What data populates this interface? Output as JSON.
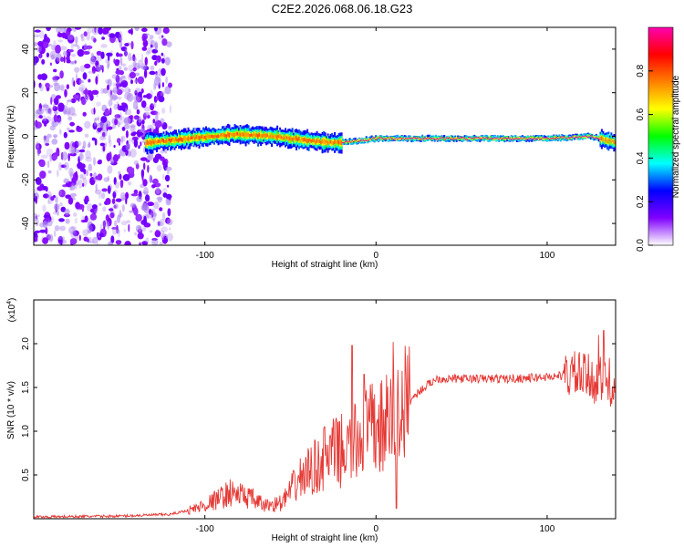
{
  "title": "C2E2.2026.068.06.18.G23",
  "chart_data": [
    {
      "type": "heatmap",
      "name": "spectrogram",
      "xlabel": "Height of straight line (km)",
      "ylabel": "Frequency (Hz)",
      "xlim": [
        -200,
        140
      ],
      "ylim": [
        -50,
        50
      ],
      "xticks": [
        -100,
        0,
        100
      ],
      "xtick_labels": [
        "-100",
        "0",
        "100"
      ],
      "yticks": [
        -40,
        -20,
        0,
        20,
        40
      ],
      "ytick_labels": [
        "-40",
        "-20",
        "0",
        "20",
        "40"
      ],
      "colorbar": {
        "label": "Normalized spectral amplitude",
        "range": [
          0,
          1
        ],
        "ticks": [
          0.0,
          0.2,
          0.4,
          0.6,
          0.8
        ],
        "tick_labels": [
          "0.0",
          "0.2",
          "0.4",
          "0.6",
          "0.8"
        ],
        "colors": [
          "#ffffff",
          "#8000ff",
          "#0000ff",
          "#00ffff",
          "#00ff00",
          "#ffff00",
          "#ff8000",
          "#ff0000",
          "#ff00b0"
        ]
      },
      "features": {
        "noise_region_x": [
          -200,
          -120
        ],
        "signal_track": [
          [
            -135,
            -3
          ],
          [
            -110,
            -1
          ],
          [
            -80,
            1
          ],
          [
            -60,
            0
          ],
          [
            -40,
            -2
          ],
          [
            -25,
            -3
          ],
          [
            -10,
            -2
          ],
          [
            0,
            -1
          ],
          [
            20,
            -1
          ],
          [
            60,
            -1
          ],
          [
            100,
            -1
          ],
          [
            125,
            0
          ],
          [
            140,
            -3
          ]
        ],
        "strong_band_x": [
          -20,
          130
        ]
      }
    },
    {
      "type": "line",
      "name": "snr",
      "xlabel": "Height of straight line (km)",
      "ylabel": "SNR (10 * v/v)",
      "multiplier": "(x10",
      "multiplier_exp": "4",
      "xlim": [
        -200,
        140
      ],
      "ylim": [
        0,
        2.5
      ],
      "xticks": [
        -100,
        0,
        100
      ],
      "xtick_labels": [
        "-100",
        "0",
        "100"
      ],
      "yticks": [
        0.5,
        1.0,
        1.5,
        2.0
      ],
      "ytick_labels": [
        "0.5",
        "1.0",
        "1.5",
        "2.0"
      ],
      "color": "#e53935",
      "series_envelope": [
        [
          -200,
          0.02
        ],
        [
          -150,
          0.03
        ],
        [
          -120,
          0.05
        ],
        [
          -105,
          0.12
        ],
        [
          -95,
          0.2
        ],
        [
          -85,
          0.3
        ],
        [
          -75,
          0.25
        ],
        [
          -65,
          0.15
        ],
        [
          -55,
          0.18
        ],
        [
          -45,
          0.45
        ],
        [
          -35,
          0.6
        ],
        [
          -25,
          0.75
        ],
        [
          -15,
          0.8
        ],
        [
          -5,
          1.0
        ],
        [
          5,
          1.05
        ],
        [
          15,
          1.25
        ],
        [
          25,
          1.45
        ],
        [
          35,
          1.6
        ],
        [
          60,
          1.6
        ],
        [
          80,
          1.6
        ],
        [
          100,
          1.62
        ],
        [
          115,
          1.65
        ],
        [
          125,
          1.6
        ],
        [
          140,
          1.55
        ]
      ],
      "spikes": [
        [
          -30,
          1.05
        ],
        [
          -14,
          1.98
        ],
        [
          -7,
          1.65
        ],
        [
          10,
          2.02
        ],
        [
          12,
          0.12
        ],
        [
          130,
          2.1
        ],
        [
          133,
          2.15
        ]
      ]
    }
  ]
}
